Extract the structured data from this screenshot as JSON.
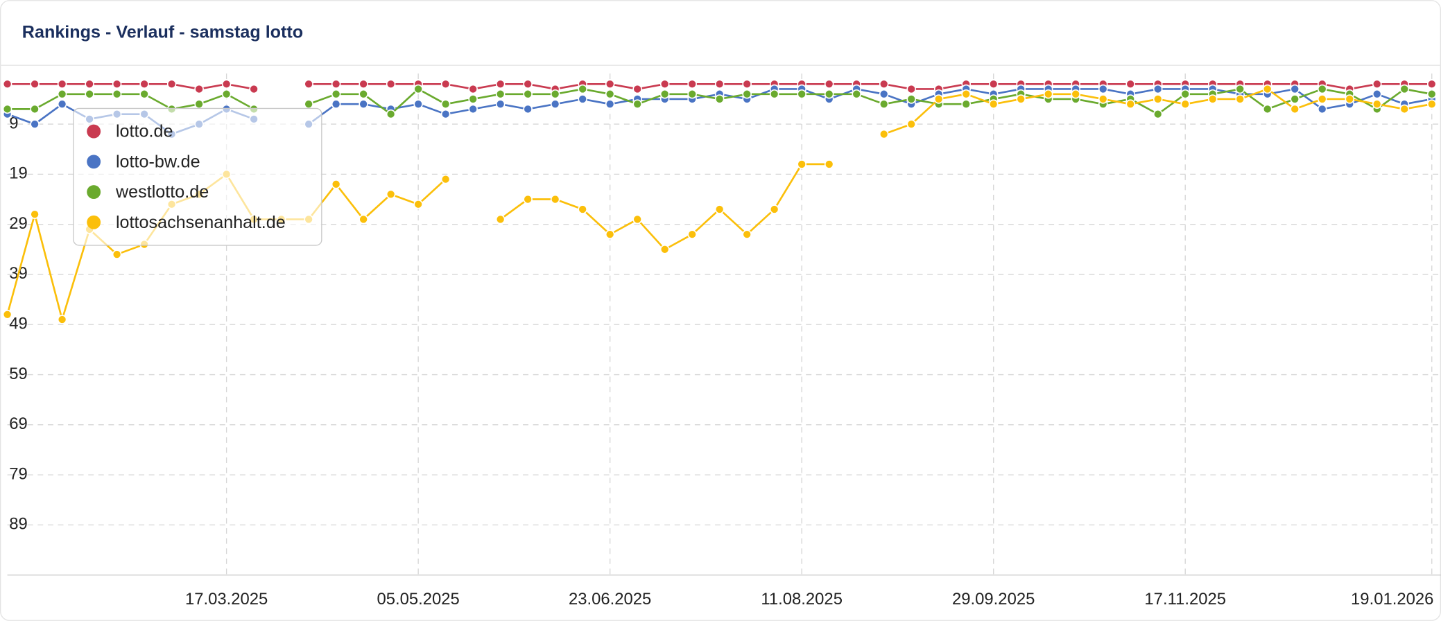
{
  "chart_data": {
    "type": "line",
    "title": "Rankings - Verlauf - samstag lotto",
    "categories": [
      null,
      null,
      null,
      null,
      null,
      null,
      null,
      null,
      "17.03.2025",
      null,
      null,
      null,
      null,
      null,
      null,
      "05.05.2025",
      null,
      null,
      null,
      null,
      null,
      null,
      "23.06.2025",
      null,
      null,
      null,
      null,
      null,
      null,
      "11.08.2025",
      null,
      null,
      null,
      null,
      null,
      null,
      "29.09.2025",
      null,
      null,
      null,
      null,
      null,
      null,
      "17.11.2025",
      null,
      null,
      null,
      null,
      null,
      null,
      null,
      null,
      "19.01.2026"
    ],
    "series": [
      {
        "name": "lotto.de",
        "color": "#c93a50",
        "values": [
          1,
          1,
          1,
          1,
          1,
          1,
          1,
          2,
          1,
          2,
          null,
          1,
          1,
          1,
          1,
          1,
          1,
          2,
          1,
          1,
          2,
          1,
          1,
          2,
          1,
          1,
          1,
          1,
          1,
          1,
          1,
          1,
          1,
          2,
          2,
          1,
          1,
          1,
          1,
          1,
          1,
          1,
          1,
          1,
          1,
          1,
          1,
          1,
          1,
          2,
          1,
          1,
          1
        ]
      },
      {
        "name": "lotto-bw.de",
        "color": "#4a74c4",
        "values": [
          7,
          9,
          5,
          8,
          7,
          7,
          11,
          9,
          6,
          8,
          null,
          9,
          5,
          5,
          6,
          5,
          7,
          6,
          5,
          6,
          5,
          4,
          5,
          4,
          4,
          4,
          3,
          4,
          2,
          2,
          4,
          2,
          3,
          5,
          3,
          2,
          3,
          2,
          2,
          2,
          2,
          3,
          2,
          2,
          2,
          3,
          3,
          2,
          6,
          5,
          3,
          5,
          4
        ]
      },
      {
        "name": "westlotto.de",
        "color": "#6aaa2e",
        "values": [
          6,
          6,
          3,
          3,
          3,
          3,
          6,
          5,
          3,
          6,
          null,
          5,
          3,
          3,
          7,
          2,
          5,
          4,
          3,
          3,
          3,
          2,
          3,
          5,
          3,
          3,
          4,
          3,
          3,
          3,
          3,
          3,
          5,
          4,
          5,
          5,
          4,
          3,
          4,
          4,
          5,
          4,
          7,
          3,
          3,
          2,
          6,
          4,
          2,
          3,
          6,
          2,
          3
        ]
      },
      {
        "name": "lottosachsenanhalt.de",
        "color": "#fbbf0a",
        "values": [
          47,
          27,
          48,
          30,
          35,
          33,
          25,
          23,
          19,
          28,
          28,
          28,
          21,
          28,
          23,
          25,
          20,
          null,
          28,
          24,
          24,
          26,
          31,
          28,
          34,
          31,
          26,
          31,
          26,
          17,
          17,
          null,
          11,
          9,
          4,
          3,
          5,
          4,
          3,
          3,
          4,
          5,
          4,
          5,
          4,
          4,
          2,
          6,
          4,
          4,
          5,
          6,
          5
        ]
      }
    ],
    "ylim": [
      0,
      99
    ],
    "y_inverted": true,
    "yticks": [
      9,
      19,
      29,
      39,
      49,
      59,
      69,
      79,
      89
    ],
    "grid": true,
    "legend": "upper-left"
  }
}
